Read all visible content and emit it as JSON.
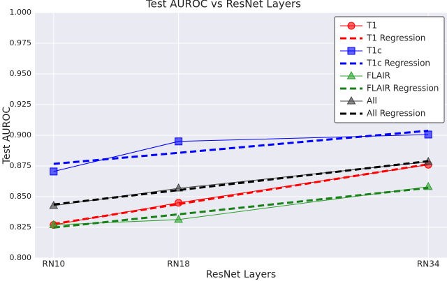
{
  "chart_data": {
    "type": "line",
    "title": "Test AUROC vs ResNet Layers",
    "x_label": "ResNet Layers",
    "y_label": "Test AUROC",
    "x": [
      10,
      18,
      34
    ],
    "xlim": [
      8.8,
      35.2
    ],
    "xticks": [
      {
        "value": 10,
        "label": "RN10"
      },
      {
        "value": 18,
        "label": "RN18"
      },
      {
        "value": 34,
        "label": "RN34"
      }
    ],
    "ylim": [
      0.8,
      1.0
    ],
    "yticks": [
      {
        "value": 0.8,
        "label": "0.800"
      },
      {
        "value": 0.825,
        "label": "0.825"
      },
      {
        "value": 0.85,
        "label": "0.850"
      },
      {
        "value": 0.875,
        "label": "0.875"
      },
      {
        "value": 0.9,
        "label": "0.900"
      },
      {
        "value": 0.925,
        "label": "0.925"
      },
      {
        "value": 0.95,
        "label": "0.950"
      },
      {
        "value": 0.975,
        "label": "0.975"
      },
      {
        "value": 1.0,
        "label": "1.000"
      }
    ],
    "grid": true,
    "legend": "upper right",
    "series": [
      {
        "name": "T1",
        "color": "#ff0000",
        "values": [
          0.827,
          0.845,
          0.876
        ],
        "marker": "circle",
        "linestyle": "solid"
      },
      {
        "name": "T1 Regression",
        "color": "#ff0000",
        "values": [
          0.8277,
          0.8439,
          0.8764
        ],
        "linestyle": "dashed"
      },
      {
        "name": "T1c",
        "color": "#0000ff",
        "values": [
          0.8705,
          0.895,
          0.9006
        ],
        "marker": "square",
        "linestyle": "solid"
      },
      {
        "name": "T1c Regression",
        "color": "#0000ff",
        "values": [
          0.8767,
          0.8857,
          0.9037
        ],
        "linestyle": "dashed"
      },
      {
        "name": "FLAIR",
        "color": "#2ca02c",
        "values": [
          0.827,
          0.8313,
          0.858
        ],
        "marker": "triangle",
        "linestyle": "solid"
      },
      {
        "name": "FLAIR Regression",
        "color": "#1a801a",
        "values": [
          0.8248,
          0.8356,
          0.8571
        ],
        "linestyle": "dashed"
      },
      {
        "name": "All",
        "color": "#404040",
        "values": [
          0.8426,
          0.8568,
          0.8784
        ],
        "marker": "triangle",
        "linestyle": "solid"
      },
      {
        "name": "All Regression",
        "color": "#000000",
        "values": [
          0.8436,
          0.8553,
          0.8789
        ],
        "linestyle": "dashed"
      }
    ]
  }
}
